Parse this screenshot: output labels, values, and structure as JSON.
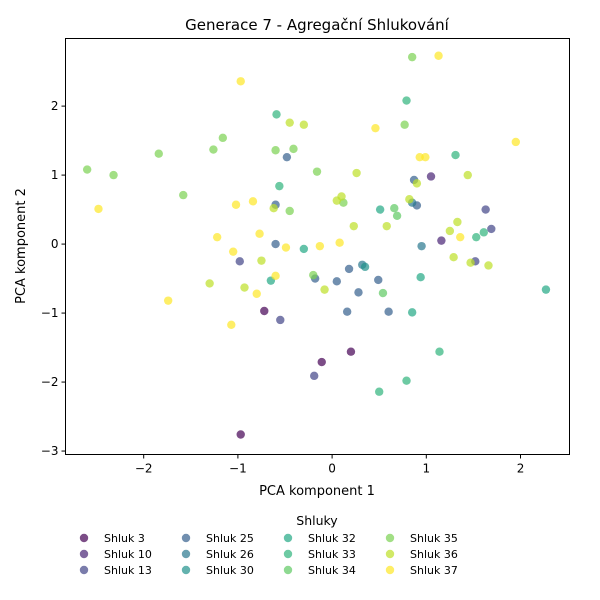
{
  "chart_data": {
    "type": "scatter",
    "title": "Generace 7 - Agregační Shlukování",
    "xlabel": "PCA komponent 1",
    "ylabel": "PCA komponent 2",
    "xlim": [
      -2.83,
      2.52
    ],
    "ylim": [
      -3.05,
      2.98
    ],
    "xticks": [
      -2,
      -1,
      0,
      1,
      2
    ],
    "yticks": [
      -3,
      -2,
      -1,
      0,
      1,
      2
    ],
    "xtick_labels": [
      "−2",
      "−1",
      "0",
      "1",
      "2"
    ],
    "ytick_labels": [
      "−3",
      "−2",
      "−1",
      "0",
      "1",
      "2"
    ],
    "grid": false,
    "legend": {
      "title": "Shluky",
      "placement": "bottom-outside",
      "columns": 5
    },
    "series": [
      {
        "name": "Shluk 3",
        "color": "#440154",
        "points": [
          [
            -0.72,
            -0.97
          ],
          [
            -0.11,
            -1.71
          ],
          [
            0.2,
            -1.56
          ],
          [
            -0.97,
            -2.76
          ]
        ]
      },
      {
        "name": "Shluk 10",
        "color": "#482475",
        "points": [
          [
            1.05,
            0.98
          ],
          [
            1.16,
            0.05
          ]
        ]
      },
      {
        "name": "Shluk 13",
        "color": "#414487",
        "points": [
          [
            -0.98,
            -0.25
          ],
          [
            -0.55,
            -1.1
          ],
          [
            -0.19,
            -1.91
          ],
          [
            1.63,
            0.5
          ],
          [
            1.69,
            0.22
          ],
          [
            1.52,
            -0.25
          ]
        ]
      },
      {
        "name": "Shluk 25",
        "color": "#355f8d",
        "points": [
          [
            -0.48,
            1.26
          ],
          [
            -0.6,
            0.57
          ],
          [
            -0.6,
            0.0
          ],
          [
            -0.18,
            -0.5
          ],
          [
            0.05,
            -0.54
          ],
          [
            0.16,
            -0.98
          ],
          [
            0.18,
            -0.36
          ],
          [
            0.28,
            -0.7
          ],
          [
            0.49,
            -0.52
          ],
          [
            0.6,
            -0.98
          ],
          [
            0.87,
            0.93
          ],
          [
            0.9,
            0.56
          ]
        ]
      },
      {
        "name": "Shluk 26",
        "color": "#2a788e",
        "points": [
          [
            0.32,
            -0.3
          ],
          [
            0.85,
            0.6
          ],
          [
            0.95,
            -0.03
          ]
        ]
      },
      {
        "name": "Shluk 30",
        "color": "#21918c",
        "points": [
          [
            0.35,
            -0.33
          ]
        ]
      },
      {
        "name": "Shluk 32",
        "color": "#22a884",
        "points": [
          [
            -0.3,
            -0.07
          ],
          [
            -0.65,
            -0.53
          ],
          [
            0.51,
            0.5
          ],
          [
            0.85,
            -0.99
          ],
          [
            0.94,
            -0.48
          ],
          [
            2.27,
            -0.66
          ]
        ]
      },
      {
        "name": "Shluk 33",
        "color": "#2fb47c",
        "points": [
          [
            -0.59,
            1.88
          ],
          [
            -0.56,
            0.84
          ],
          [
            0.79,
            2.08
          ],
          [
            1.31,
            1.29
          ],
          [
            1.53,
            0.1
          ],
          [
            1.61,
            0.17
          ],
          [
            0.5,
            -2.14
          ],
          [
            0.79,
            -1.98
          ],
          [
            1.14,
            -1.56
          ]
        ]
      },
      {
        "name": "Shluk 34",
        "color": "#5ec962",
        "points": [
          [
            0.54,
            -0.71
          ],
          [
            0.66,
            0.52
          ],
          [
            0.69,
            0.41
          ]
        ]
      },
      {
        "name": "Shluk 35",
        "color": "#7ad151",
        "points": [
          [
            -2.6,
            1.08
          ],
          [
            -2.32,
            1.0
          ],
          [
            -1.84,
            1.31
          ],
          [
            -1.58,
            0.71
          ],
          [
            -1.26,
            1.37
          ],
          [
            -1.16,
            1.54
          ],
          [
            -0.6,
            1.36
          ],
          [
            -0.41,
            1.38
          ],
          [
            -0.16,
            1.05
          ],
          [
            0.12,
            0.6
          ],
          [
            0.77,
            1.73
          ],
          [
            0.85,
            2.71
          ],
          [
            -0.45,
            0.48
          ],
          [
            -0.2,
            -0.45
          ]
        ]
      },
      {
        "name": "Shluk 36",
        "color": "#bddf26",
        "points": [
          [
            -1.3,
            -0.57
          ],
          [
            -0.93,
            -0.63
          ],
          [
            -0.75,
            -0.24
          ],
          [
            -0.62,
            0.52
          ],
          [
            -0.45,
            1.76
          ],
          [
            -0.3,
            1.73
          ],
          [
            -0.08,
            -0.66
          ],
          [
            0.05,
            0.63
          ],
          [
            0.1,
            0.69
          ],
          [
            0.23,
            0.26
          ],
          [
            0.26,
            1.03
          ],
          [
            0.58,
            0.26
          ],
          [
            0.82,
            0.65
          ],
          [
            0.9,
            0.88
          ],
          [
            1.25,
            0.19
          ],
          [
            1.29,
            -0.19
          ],
          [
            1.33,
            0.32
          ],
          [
            1.44,
            1.0
          ],
          [
            1.47,
            -0.27
          ],
          [
            1.66,
            -0.31
          ]
        ]
      },
      {
        "name": "Shluk 37",
        "color": "#fde725",
        "points": [
          [
            -2.48,
            0.51
          ],
          [
            -1.74,
            -0.82
          ],
          [
            -1.22,
            0.1
          ],
          [
            -1.07,
            -1.17
          ],
          [
            -1.05,
            -0.11
          ],
          [
            -1.02,
            0.57
          ],
          [
            -0.97,
            2.36
          ],
          [
            -0.84,
            0.62
          ],
          [
            -0.8,
            -0.72
          ],
          [
            -0.77,
            0.15
          ],
          [
            -0.6,
            -0.46
          ],
          [
            -0.49,
            -0.05
          ],
          [
            -0.13,
            -0.03
          ],
          [
            0.08,
            0.02
          ],
          [
            0.46,
            1.68
          ],
          [
            0.93,
            1.26
          ],
          [
            0.99,
            1.26
          ],
          [
            1.13,
            2.73
          ],
          [
            1.36,
            0.1
          ],
          [
            1.95,
            1.48
          ]
        ]
      }
    ]
  }
}
